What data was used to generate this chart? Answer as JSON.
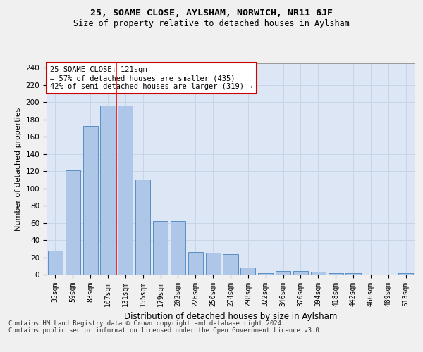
{
  "title1": "25, SOAME CLOSE, AYLSHAM, NORWICH, NR11 6JF",
  "title2": "Size of property relative to detached houses in Aylsham",
  "xlabel": "Distribution of detached houses by size in Aylsham",
  "ylabel": "Number of detached properties",
  "categories": [
    "35sqm",
    "59sqm",
    "83sqm",
    "107sqm",
    "131sqm",
    "155sqm",
    "179sqm",
    "202sqm",
    "226sqm",
    "250sqm",
    "274sqm",
    "298sqm",
    "322sqm",
    "346sqm",
    "370sqm",
    "394sqm",
    "418sqm",
    "442sqm",
    "466sqm",
    "489sqm",
    "513sqm"
  ],
  "values": [
    28,
    121,
    172,
    196,
    196,
    110,
    62,
    62,
    26,
    25,
    24,
    8,
    2,
    4,
    4,
    3,
    2,
    2,
    0,
    0,
    2
  ],
  "bar_color": "#aec6e8",
  "bar_edge_color": "#5a8fc2",
  "red_line_x": 3.5,
  "annotation_text": "25 SOAME CLOSE: 121sqm\n← 57% of detached houses are smaller (435)\n42% of semi-detached houses are larger (319) →",
  "annotation_box_color": "#ffffff",
  "annotation_box_edge_color": "#cc0000",
  "ylim": [
    0,
    245
  ],
  "yticks": [
    0,
    20,
    40,
    60,
    80,
    100,
    120,
    140,
    160,
    180,
    200,
    220,
    240
  ],
  "grid_color": "#c8d4e8",
  "plot_bg_color": "#dce6f5",
  "fig_bg_color": "#f0f0f0",
  "footnote1": "Contains HM Land Registry data © Crown copyright and database right 2024.",
  "footnote2": "Contains public sector information licensed under the Open Government Licence v3.0."
}
